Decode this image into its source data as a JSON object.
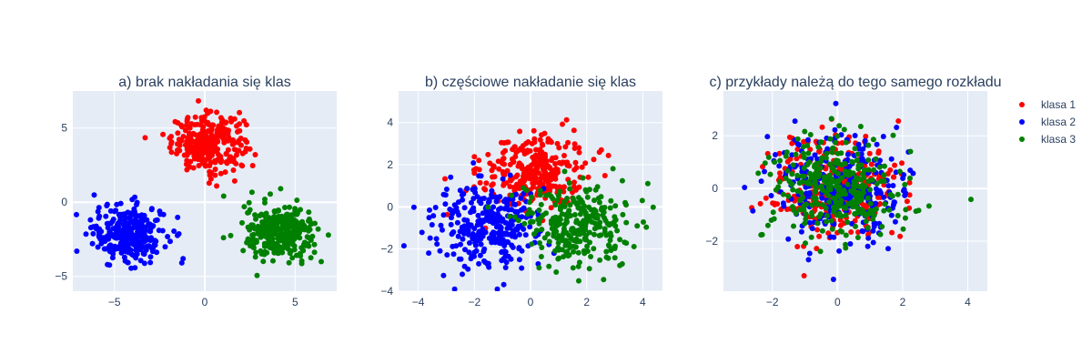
{
  "chart_data": [
    {
      "type": "scatter",
      "title": "a) brak nakładania się klas",
      "xlim": [
        -7.3,
        7.3
      ],
      "ylim": [
        -6.0,
        7.5
      ],
      "xticks": [
        -5,
        0,
        5
      ],
      "yticks": [
        -5,
        0,
        5
      ],
      "grid": true,
      "series": [
        {
          "name": "klasa 1",
          "center": [
            0.2,
            4.0
          ],
          "spread": [
            1.0,
            0.95
          ],
          "n": 300
        },
        {
          "name": "klasa 2",
          "center": [
            -4.2,
            -2.1
          ],
          "spread": [
            1.0,
            0.95
          ],
          "n": 300
        },
        {
          "name": "klasa 3",
          "center": [
            4.2,
            -2.1
          ],
          "spread": [
            1.0,
            0.95
          ],
          "n": 300
        }
      ]
    },
    {
      "type": "scatter",
      "title": "b) częściowe nakładanie się klas",
      "xlim": [
        -4.7,
        4.7
      ],
      "ylim": [
        -4.0,
        5.5
      ],
      "xticks": [
        -4,
        -2,
        0,
        2,
        4
      ],
      "yticks": [
        -4,
        -2,
        0,
        2,
        4
      ],
      "grid": true,
      "series": [
        {
          "name": "klasa 1",
          "center": [
            0.1,
            1.7
          ],
          "spread": [
            0.95,
            0.9
          ],
          "n": 300
        },
        {
          "name": "klasa 2",
          "center": [
            -1.6,
            -0.9
          ],
          "spread": [
            0.95,
            0.95
          ],
          "n": 300
        },
        {
          "name": "klasa 3",
          "center": [
            1.6,
            -0.9
          ],
          "spread": [
            0.95,
            0.95
          ],
          "n": 300
        }
      ]
    },
    {
      "type": "scatter",
      "title": "c) przykłady należą do tego samego rozkładu",
      "xlim": [
        -3.5,
        4.6
      ],
      "ylim": [
        -3.9,
        3.7
      ],
      "xticks": [
        -2,
        0,
        2,
        4
      ],
      "yticks": [
        -2,
        0,
        2
      ],
      "grid": true,
      "series": [
        {
          "name": "klasa 1",
          "center": [
            0.0,
            0.0
          ],
          "spread": [
            1.0,
            1.0
          ],
          "n": 300
        },
        {
          "name": "klasa 2",
          "center": [
            0.0,
            0.0
          ],
          "spread": [
            1.0,
            1.0
          ],
          "n": 300
        },
        {
          "name": "klasa 3",
          "center": [
            0.0,
            0.0
          ],
          "spread": [
            1.0,
            1.0
          ],
          "n": 300
        }
      ]
    }
  ],
  "legend": {
    "placement": "top-right",
    "entries": [
      "klasa 1",
      "klasa 2",
      "klasa 3"
    ]
  },
  "colors": {
    "klasa 1": "#ff0000",
    "klasa 2": "#0000ff",
    "klasa 3": "#008000",
    "plot_bg": "#e5ecf6",
    "grid": "#ffffff",
    "text": "#2a3f5f"
  }
}
